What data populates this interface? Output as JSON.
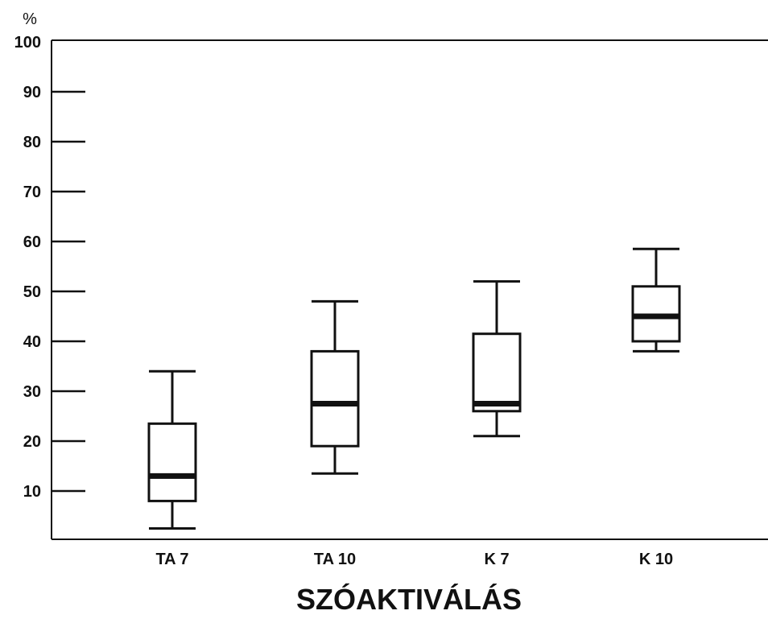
{
  "chart_data": {
    "type": "boxplot",
    "title": "",
    "xlabel": "SZÓAKTIVÁLÁS",
    "ylabel": "%",
    "ylim": [
      0,
      100
    ],
    "yticks": [
      10,
      20,
      30,
      40,
      50,
      60,
      70,
      80,
      90,
      100
    ],
    "grid": false,
    "categories": [
      "TA 7",
      "TA 10",
      "K 7",
      "K 10"
    ],
    "boxes": [
      {
        "category": "TA 7",
        "min": 2.5,
        "q1": 8,
        "median": 13,
        "q3": 23.5,
        "max": 34
      },
      {
        "category": "TA 10",
        "min": 13.5,
        "q1": 19,
        "median": 27.5,
        "q3": 38,
        "max": 48
      },
      {
        "category": "K 7",
        "min": 21,
        "q1": 26,
        "median": 27.5,
        "q3": 41.5,
        "max": 52
      },
      {
        "category": "K 10",
        "min": 38,
        "q1": 40,
        "median": 45,
        "q3": 51,
        "max": 58.5
      }
    ]
  }
}
